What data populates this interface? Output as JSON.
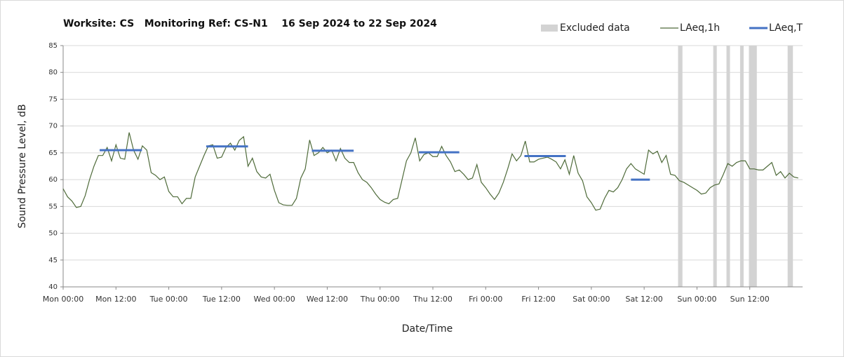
{
  "chart_data": {
    "type": "line",
    "title": "Worksite: CS   Monitoring Ref: CS-N1    16 Sep 2024 to 22 Sep 2024",
    "xlabel": "Date/Time",
    "ylabel": "Sound Pressure Level, dB",
    "xlim": [
      0,
      168
    ],
    "ylim": [
      40,
      85
    ],
    "yticks": [
      40,
      45,
      50,
      55,
      60,
      65,
      70,
      75,
      80,
      85
    ],
    "xticks": [
      {
        "value": 0,
        "label": "Mon 00:00"
      },
      {
        "value": 12,
        "label": "Mon 12:00"
      },
      {
        "value": 24,
        "label": "Tue 00:00"
      },
      {
        "value": 36,
        "label": "Tue 12:00"
      },
      {
        "value": 48,
        "label": "Wed 00:00"
      },
      {
        "value": 60,
        "label": "Wed 12:00"
      },
      {
        "value": 72,
        "label": "Thu 00:00"
      },
      {
        "value": 84,
        "label": "Thu 12:00"
      },
      {
        "value": 96,
        "label": "Fri 00:00"
      },
      {
        "value": 108,
        "label": "Fri 12:00"
      },
      {
        "value": 120,
        "label": "Sat 00:00"
      },
      {
        "value": 132,
        "label": "Sat 12:00"
      },
      {
        "value": 144,
        "label": "Sun 00:00"
      },
      {
        "value": 156,
        "label": "Sun 12:00"
      }
    ],
    "grid": true,
    "excluded": {
      "name": "Excluded data",
      "color": "#d3d3d3",
      "ranges": [
        [
          139.7,
          140.7
        ],
        [
          147.7,
          148.5
        ],
        [
          150.7,
          151.5
        ],
        [
          153.8,
          154.6
        ],
        [
          155.8,
          157.6
        ],
        [
          164.6,
          165.8
        ]
      ]
    },
    "series": [
      {
        "name": "LAeq,1h",
        "color": "#4f6b3a",
        "x": [
          0,
          1,
          2,
          3,
          4,
          5,
          6,
          7,
          8,
          9,
          10,
          11,
          12,
          13,
          14,
          15,
          16,
          17,
          18,
          19,
          20,
          21,
          22,
          23,
          24,
          25,
          26,
          27,
          28,
          29,
          30,
          31,
          32,
          33,
          34,
          35,
          36,
          37,
          38,
          39,
          40,
          41,
          42,
          43,
          44,
          45,
          46,
          47,
          48,
          49,
          50,
          51,
          52,
          53,
          54,
          55,
          56,
          57,
          58,
          59,
          60,
          61,
          62,
          63,
          64,
          65,
          66,
          67,
          68,
          69,
          70,
          71,
          72,
          73,
          74,
          75,
          76,
          77,
          78,
          79,
          80,
          81,
          82,
          83,
          84,
          85,
          86,
          87,
          88,
          89,
          90,
          91,
          92,
          93,
          94,
          95,
          96,
          97,
          98,
          99,
          100,
          101,
          102,
          103,
          104,
          105,
          106,
          107,
          108,
          109,
          110,
          111,
          112,
          113,
          114,
          115,
          116,
          117,
          118,
          119,
          120,
          121,
          122,
          123,
          124,
          125,
          126,
          127,
          128,
          129,
          130,
          131,
          132,
          133,
          134,
          135,
          136,
          137,
          138,
          139,
          140,
          141,
          142,
          143,
          144,
          145,
          146,
          147,
          148,
          149,
          150,
          151,
          152,
          153,
          154,
          155,
          156,
          157,
          158,
          159,
          160,
          161,
          162,
          163,
          164,
          165,
          166,
          167
        ],
        "values": [
          58.3,
          56.8,
          56,
          54.8,
          55,
          57,
          60,
          62.5,
          64.5,
          64.5,
          66,
          63.5,
          66.5,
          64,
          63.8,
          68.8,
          65.5,
          63.8,
          66.3,
          65.5,
          61.3,
          60.8,
          60,
          60.5,
          57.8,
          56.8,
          56.8,
          55.5,
          56.5,
          56.5,
          60.5,
          62.5,
          64.5,
          66.3,
          66.5,
          64,
          64.2,
          66,
          66.8,
          65.5,
          67.3,
          68,
          62.5,
          64,
          61.5,
          60.5,
          60.3,
          61,
          58,
          55.7,
          55.3,
          55.2,
          55.2,
          56.5,
          60.3,
          62,
          67.4,
          64.5,
          65,
          66,
          65,
          65.5,
          63.5,
          65.8,
          64,
          63.2,
          63.2,
          61.3,
          60,
          59.5,
          58.5,
          57.3,
          56.3,
          55.8,
          55.5,
          56.3,
          56.5,
          60,
          63.5,
          65,
          67.8,
          63.5,
          64.7,
          65,
          64.3,
          64.3,
          66.2,
          64.5,
          63.3,
          61.5,
          61.8,
          61,
          60,
          60.3,
          62.8,
          59.5,
          58.5,
          57.3,
          56.3,
          57.5,
          59.5,
          62,
          64.8,
          63.5,
          64.5,
          67.2,
          63.3,
          63.3,
          63.8,
          64,
          64.2,
          63.8,
          63.3,
          62,
          63.7,
          61,
          64.5,
          61.2,
          59.8,
          56.8,
          55.7,
          54.3,
          54.5,
          56.5,
          58,
          57.7,
          58.5,
          60,
          62,
          63,
          62,
          61.5,
          61,
          65.5,
          64.8,
          65.3,
          63.2,
          64.5,
          61,
          60.8,
          59.8,
          59.5,
          59,
          58.5,
          58,
          57.3,
          57.5,
          58.5,
          59,
          59.2,
          61,
          63,
          62.5,
          63.2,
          63.5,
          63.5,
          62,
          62,
          61.8,
          61.8,
          62.5,
          63.2,
          60.8,
          61.5,
          60.3,
          61.2,
          60.5,
          60.3
        ]
      },
      {
        "name": "LAeq,T",
        "color": "#4472c4",
        "segments": [
          {
            "start": 8.3,
            "end": 17.9,
            "value": 65.5
          },
          {
            "start": 32.5,
            "end": 42,
            "value": 66.2
          },
          {
            "start": 56.5,
            "end": 66,
            "value": 65.4
          },
          {
            "start": 80.8,
            "end": 90,
            "value": 65.1
          },
          {
            "start": 104.8,
            "end": 114.2,
            "value": 64.4
          },
          {
            "start": 129,
            "end": 133.3,
            "value": 60
          }
        ]
      }
    ]
  }
}
